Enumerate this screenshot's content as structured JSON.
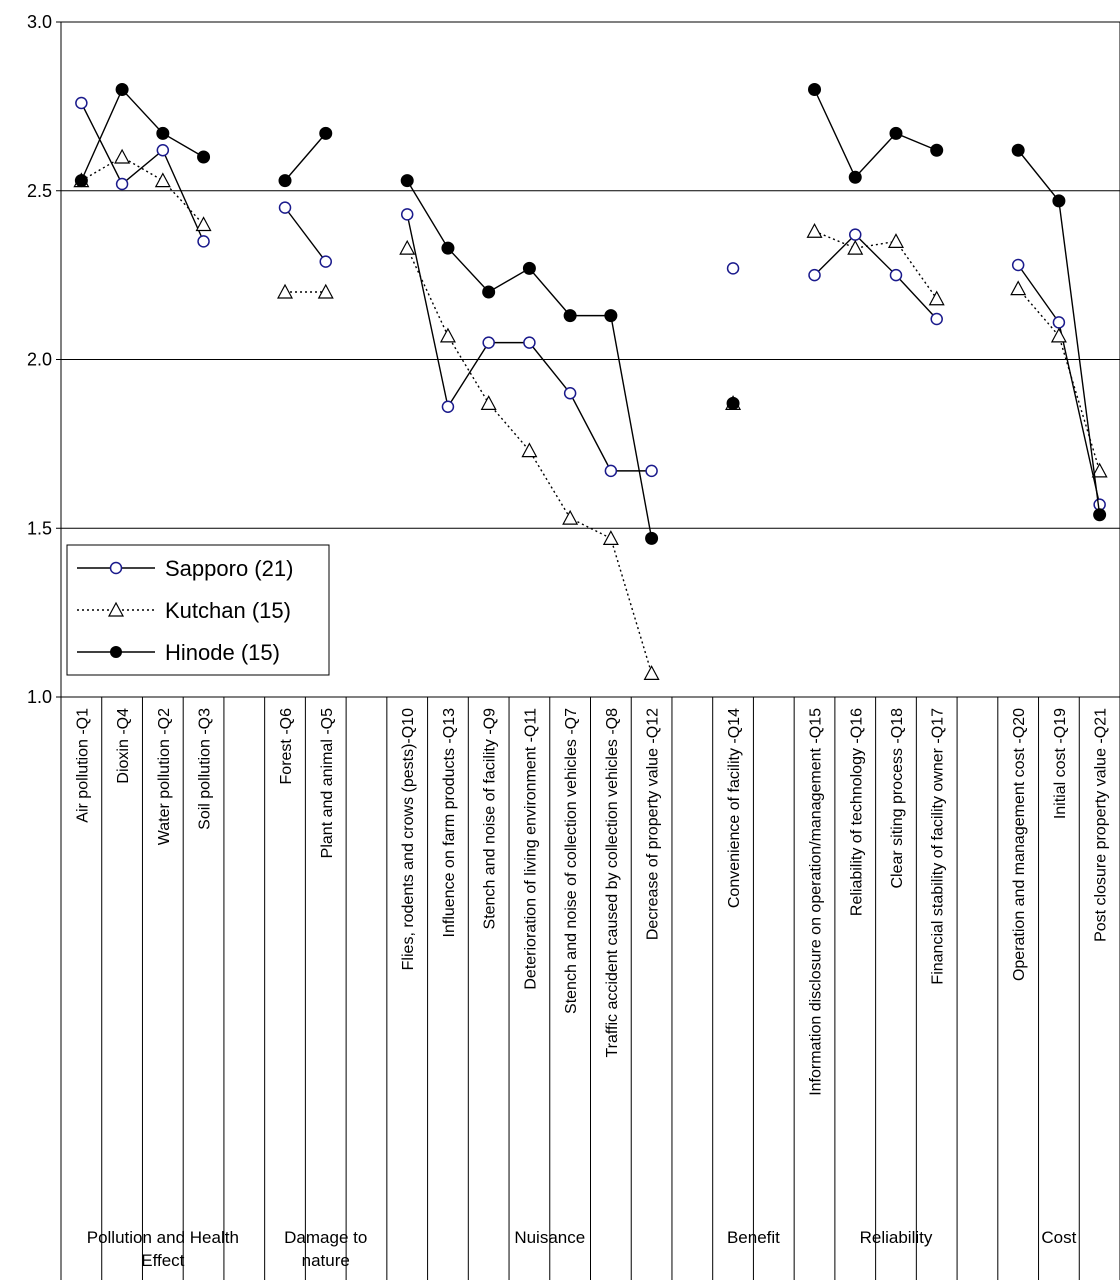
{
  "chart_data": {
    "type": "line",
    "title": "",
    "xlabel": "",
    "ylabel": "",
    "ylim": [
      1.0,
      3.0
    ],
    "y_ticks": [
      "1.0",
      "1.5",
      "2.0",
      "2.5",
      "3.0"
    ],
    "grid": "horizontal",
    "legend_position": "bottom-left",
    "categories": [
      "Air pollution -Q1",
      "Dioxin -Q4",
      "Water pollution -Q2",
      "Soil pollution -Q3",
      "",
      "Forest -Q6",
      "Plant and animal -Q5",
      "",
      "Flies, rodents and crows (pests)-Q10",
      "Influence on farm products -Q13",
      "Stench and noise of facility -Q9",
      "Deterioration of living environment -Q11",
      "Stench and noise of collection vehicles -Q7",
      "Traffic accident caused by collection vehicles -Q8",
      "Decrease of property value -Q12",
      "",
      "Convenience of facility -Q14",
      "",
      "Information disclosure on operation/management -Q15",
      "Reliability of technology -Q16",
      "Clear siting process -Q18",
      "Financial  stability of facility owner -Q17",
      "",
      "Operation and management cost -Q20",
      "Initial cost -Q19",
      "Post closure property value -Q21"
    ],
    "groups": [
      {
        "label": "Pollution and Health Effect",
        "lines": [
          "Pollution and Health",
          "Effect"
        ],
        "start": 0,
        "count": 5
      },
      {
        "label": "Damage to nature",
        "lines": [
          "Damage to",
          "nature"
        ],
        "start": 5,
        "count": 3
      },
      {
        "label": "Nuisance",
        "lines": [
          "Nuisance"
        ],
        "start": 8,
        "count": 8
      },
      {
        "label": "Benefit",
        "lines": [
          "Benefit"
        ],
        "start": 16,
        "count": 2
      },
      {
        "label": "Reliability",
        "lines": [
          "Reliability"
        ],
        "start": 18,
        "count": 5
      },
      {
        "label": "Cost",
        "lines": [
          "Cost"
        ],
        "start": 23,
        "count": 3
      }
    ],
    "series": [
      {
        "name": "Sapporo (21)",
        "marker": "circle-open",
        "line": "solid",
        "color": "#1a1a8c",
        "values": [
          2.76,
          2.52,
          2.62,
          2.35,
          null,
          2.45,
          2.29,
          null,
          2.43,
          1.86,
          2.05,
          2.05,
          1.9,
          1.67,
          1.67,
          null,
          2.27,
          null,
          2.25,
          2.37,
          2.25,
          2.12,
          null,
          2.28,
          2.11,
          1.57
        ]
      },
      {
        "name": "Kutchan (15)",
        "marker": "triangle-open",
        "line": "dotted",
        "color": "#000000",
        "values": [
          2.53,
          2.6,
          2.53,
          2.4,
          null,
          2.2,
          2.2,
          null,
          2.33,
          2.07,
          1.87,
          1.73,
          1.53,
          1.47,
          1.07,
          null,
          1.87,
          null,
          2.38,
          2.33,
          2.35,
          2.18,
          null,
          2.21,
          2.07,
          1.67
        ]
      },
      {
        "name": "Hinode (15)",
        "marker": "circle-filled",
        "line": "solid",
        "color": "#000000",
        "values": [
          2.53,
          2.8,
          2.67,
          2.6,
          null,
          2.53,
          2.67,
          null,
          2.53,
          2.33,
          2.2,
          2.27,
          2.13,
          2.13,
          1.47,
          null,
          1.87,
          null,
          2.8,
          2.54,
          2.67,
          2.62,
          null,
          2.62,
          2.47,
          1.54
        ]
      }
    ]
  }
}
